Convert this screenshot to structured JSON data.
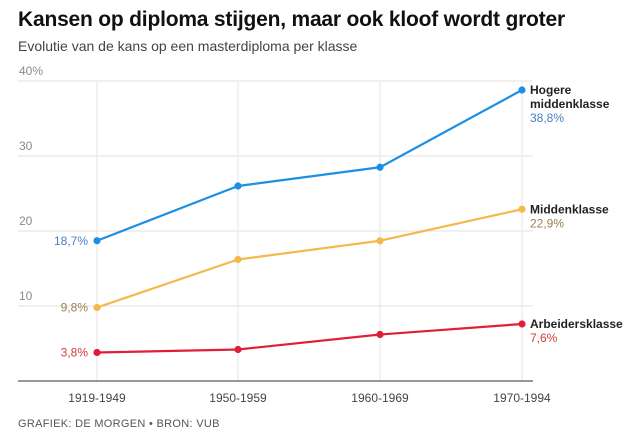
{
  "title": "Kansen op diploma stijgen, maar ook kloof wordt groter",
  "subtitle": "Evolutie van de kans op een masterdiploma per klasse",
  "footer": "GRAFIEK: DE MORGEN • BRON: VUB",
  "chart_data": {
    "type": "line",
    "categories": [
      "1919-1949",
      "1950-1959",
      "1960-1969",
      "1970-1994"
    ],
    "ylim": [
      0,
      40
    ],
    "yticks": [
      {
        "value": 10,
        "label": "10"
      },
      {
        "value": 20,
        "label": "20"
      },
      {
        "value": 30,
        "label": "30"
      },
      {
        "value": 40,
        "label": "40%"
      }
    ],
    "grid": true,
    "series": [
      {
        "name_lines": [
          "Hogere",
          "middenklasse"
        ],
        "values": [
          18.7,
          26.0,
          28.5,
          38.8
        ],
        "start_label": "18,7%",
        "end_label": "38,8%",
        "color": "#1a8fe3",
        "label_color": "#4a7fc1"
      },
      {
        "name_lines": [
          "Middenklasse"
        ],
        "values": [
          9.8,
          16.2,
          18.7,
          22.9
        ],
        "start_label": "9,8%",
        "end_label": "22,9%",
        "color": "#f6b84b",
        "label_color": "#a08050"
      },
      {
        "name_lines": [
          "Arbeidersklasse"
        ],
        "values": [
          3.8,
          4.2,
          6.2,
          7.6
        ],
        "start_label": "3,8%",
        "end_label": "7,6%",
        "color": "#e01e37",
        "label_color": "#d23c3c"
      }
    ]
  }
}
